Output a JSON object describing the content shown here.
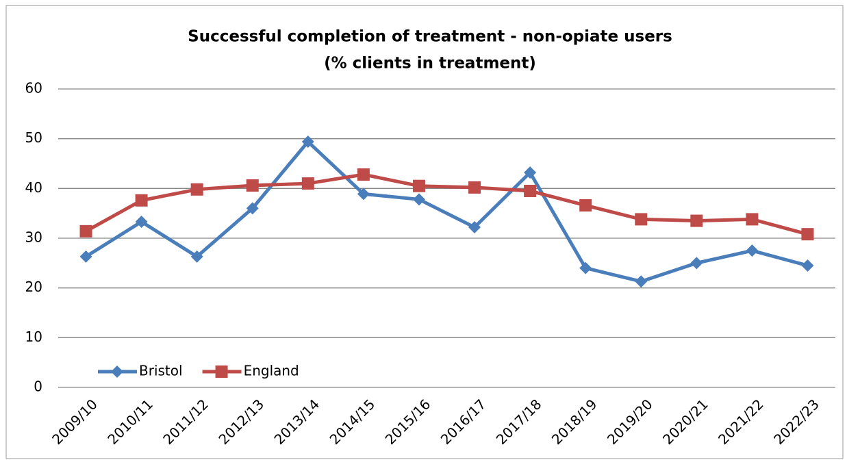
{
  "chart_data": {
    "type": "line",
    "title": [
      "Successful completion of treatment - non-opiate users",
      "(% clients in treatment)"
    ],
    "categories": [
      "2009/10",
      "2010/11",
      "2011/12",
      "2012/13",
      "2013/14",
      "2014/15",
      "2015/16",
      "2016/17",
      "2017/18",
      "2018/19",
      "2019/20",
      "2020/21",
      "2021/22",
      "2022/23"
    ],
    "series": [
      {
        "name": "Bristol",
        "color": "#4a7ebb",
        "marker": "diamond",
        "values": [
          26.3,
          33.3,
          26.3,
          36,
          49.4,
          38.9,
          37.8,
          32.2,
          43.2,
          24,
          21.3,
          25,
          27.5,
          24.5
        ]
      },
      {
        "name": "England",
        "color": "#be4b48",
        "marker": "square",
        "values": [
          31.4,
          37.6,
          39.8,
          40.6,
          41,
          42.8,
          40.5,
          40.2,
          39.5,
          36.6,
          33.8,
          33.5,
          33.8,
          30.8
        ]
      }
    ],
    "ylim": [
      0,
      60
    ],
    "yticks": [
      0,
      10,
      20,
      30,
      40,
      50,
      60
    ],
    "grid": true,
    "legend": "bottom-left"
  }
}
